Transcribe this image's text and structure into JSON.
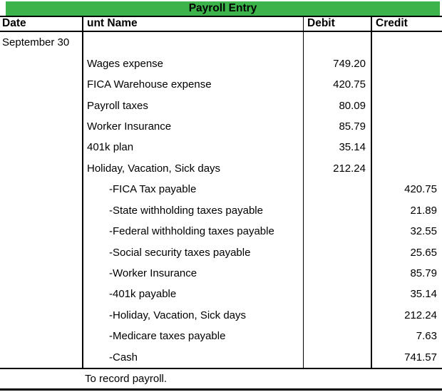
{
  "title_bar": {
    "title": "Payroll Entry"
  },
  "header": {
    "date": "Date",
    "account": "unt Name",
    "debit": "Debit",
    "credit": "Credit"
  },
  "rows": [
    {
      "date": "September 30",
      "account": "",
      "debit": "",
      "credit": ""
    },
    {
      "date": "",
      "account": "Wages expense",
      "debit": "749.20",
      "credit": ""
    },
    {
      "date": "",
      "account": "FICA Warehouse expense",
      "debit": "420.75",
      "credit": ""
    },
    {
      "date": "",
      "account": "Payroll taxes",
      "debit": "80.09",
      "credit": ""
    },
    {
      "date": "",
      "account": "Worker Insurance",
      "debit": "85.79",
      "credit": ""
    },
    {
      "date": "",
      "account": "401k plan",
      "debit": "35.14",
      "credit": ""
    },
    {
      "date": "",
      "account": "Holiday, Vacation, Sick days",
      "debit": "212.24",
      "credit": ""
    },
    {
      "date": "",
      "account": "-FICA Tax payable",
      "debit": "",
      "credit": "420.75"
    },
    {
      "date": "",
      "account": "-State withholding taxes payable",
      "debit": "",
      "credit": "21.89"
    },
    {
      "date": "",
      "account": "-Federal withholding taxes payable",
      "debit": "",
      "credit": "32.55"
    },
    {
      "date": "",
      "account": "-Social security taxes payable",
      "debit": "",
      "credit": "25.65"
    },
    {
      "date": "",
      "account": "-Worker Insurance",
      "debit": "",
      "credit": "85.79"
    },
    {
      "date": "",
      "account": "-401k payable",
      "debit": "",
      "credit": "35.14"
    },
    {
      "date": "",
      "account": "-Holiday, Vacation, Sick days",
      "debit": "",
      "credit": "212.24"
    },
    {
      "date": "",
      "account": "-Medicare taxes payable",
      "debit": "",
      "credit": "7.63"
    },
    {
      "date": "",
      "account": "-Cash",
      "debit": "",
      "credit": "741.57"
    }
  ],
  "footer": {
    "note": "To record payroll."
  },
  "colors": {
    "title_bg": "#3CB44B",
    "border": "#000000",
    "text": "#000000",
    "background": "#FFFFFF"
  }
}
